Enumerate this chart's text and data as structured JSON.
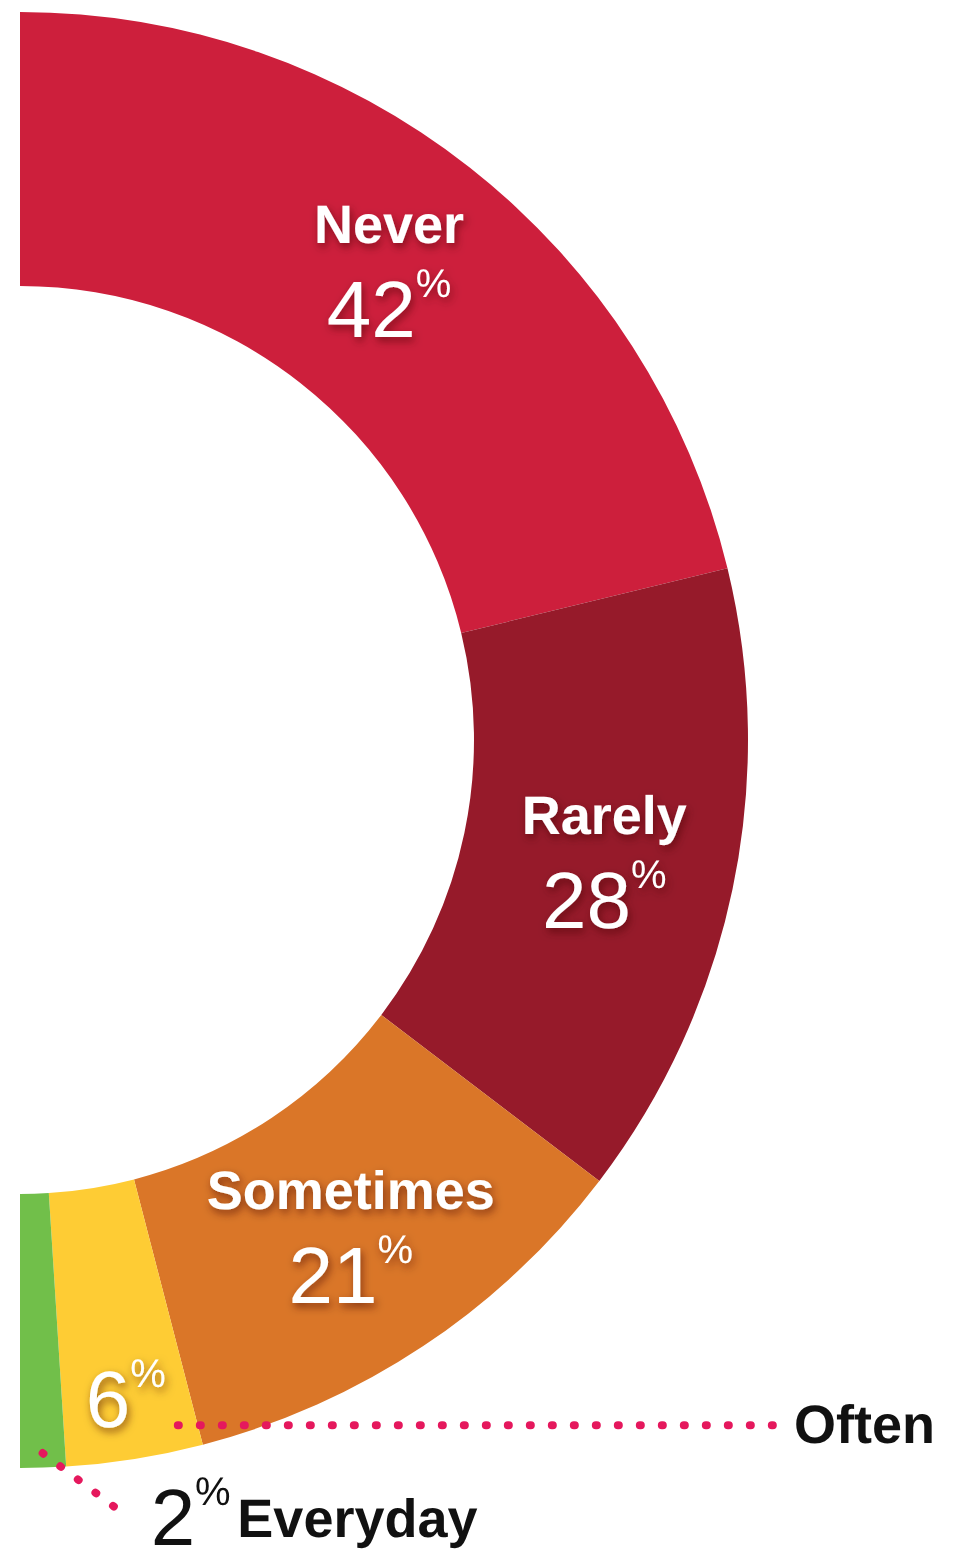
{
  "chart_data": {
    "type": "donut",
    "categories": [
      "Never",
      "Rarely",
      "Sometimes",
      "Often",
      "Everyday"
    ],
    "values": [
      42,
      28,
      21,
      6,
      2
    ],
    "colors": [
      "#cd1f3c",
      "#961a2a",
      "#da7628",
      "#fecc34",
      "#71bf4a"
    ],
    "value_labels": [
      "42$^{%}$",
      "28$^{%}$",
      "21$^{%}$",
      "6$^{%}$",
      "2$^{%}$"
    ]
  }
}
